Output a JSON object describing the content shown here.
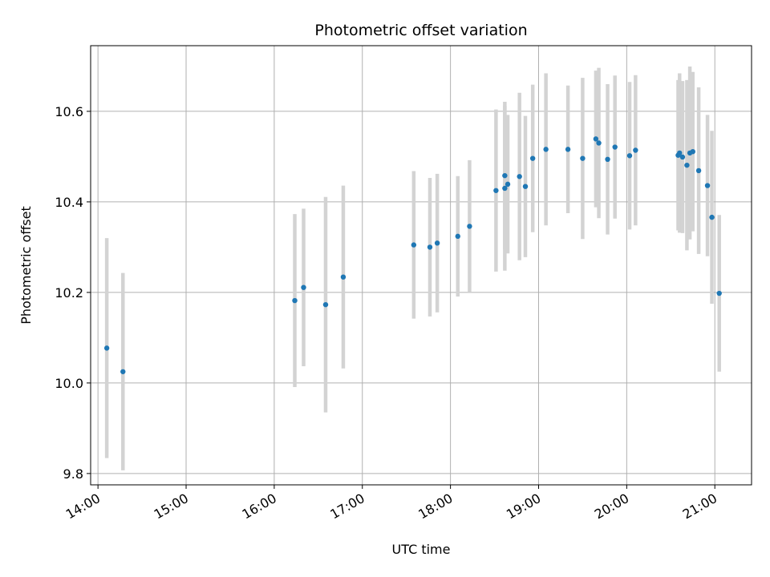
{
  "chart_data": {
    "type": "scatter",
    "title": "Photometric offset variation",
    "xlabel": "UTC time",
    "ylabel": "Photometric offset",
    "xlim": [
      "13:55",
      "21:25"
    ],
    "ylim": [
      9.775,
      10.745
    ],
    "x_ticks": [
      "14:00",
      "15:00",
      "16:00",
      "17:00",
      "18:00",
      "19:00",
      "20:00",
      "21:00"
    ],
    "y_ticks": [
      9.8,
      10.0,
      10.2,
      10.4,
      10.6
    ],
    "y_tick_labels": [
      "9.8",
      "10.0",
      "10.2",
      "10.4",
      "10.6"
    ],
    "grid": true,
    "series": [
      {
        "marker_color": "#1f77b4",
        "errorbar_color": "#d3d3d3",
        "points": [
          {
            "x": "14:06",
            "y": 10.077,
            "err": 0.243
          },
          {
            "x": "14:17",
            "y": 10.025,
            "err": 0.218
          },
          {
            "x": "16:14",
            "y": 10.182,
            "err": 0.191
          },
          {
            "x": "16:20",
            "y": 10.211,
            "err": 0.174
          },
          {
            "x": "16:35",
            "y": 10.173,
            "err": 0.238
          },
          {
            "x": "16:47",
            "y": 10.234,
            "err": 0.202
          },
          {
            "x": "17:35",
            "y": 10.305,
            "err": 0.163
          },
          {
            "x": "17:46",
            "y": 10.3,
            "err": 0.153
          },
          {
            "x": "17:51",
            "y": 10.309,
            "err": 0.153
          },
          {
            "x": "18:05",
            "y": 10.324,
            "err": 0.133
          },
          {
            "x": "18:13",
            "y": 10.346,
            "err": 0.146
          },
          {
            "x": "18:31",
            "y": 10.425,
            "err": 0.179
          },
          {
            "x": "18:37",
            "y": 10.458,
            "err": 0.163
          },
          {
            "x": "18:37",
            "y": 10.43,
            "err": 0.182
          },
          {
            "x": "18:39",
            "y": 10.439,
            "err": 0.153
          },
          {
            "x": "18:47",
            "y": 10.456,
            "err": 0.185
          },
          {
            "x": "18:51",
            "y": 10.434,
            "err": 0.156
          },
          {
            "x": "18:56",
            "y": 10.496,
            "err": 0.163
          },
          {
            "x": "19:05",
            "y": 10.516,
            "err": 0.168
          },
          {
            "x": "19:20",
            "y": 10.516,
            "err": 0.141
          },
          {
            "x": "19:30",
            "y": 10.496,
            "err": 0.178
          },
          {
            "x": "19:39",
            "y": 10.539,
            "err": 0.151
          },
          {
            "x": "19:41",
            "y": 10.53,
            "err": 0.166
          },
          {
            "x": "19:47",
            "y": 10.494,
            "err": 0.166
          },
          {
            "x": "19:52",
            "y": 10.521,
            "err": 0.158
          },
          {
            "x": "20:02",
            "y": 10.502,
            "err": 0.163
          },
          {
            "x": "20:06",
            "y": 10.514,
            "err": 0.166
          },
          {
            "x": "20:35",
            "y": 10.503,
            "err": 0.166
          },
          {
            "x": "20:36",
            "y": 10.508,
            "err": 0.176
          },
          {
            "x": "20:38",
            "y": 10.499,
            "err": 0.168
          },
          {
            "x": "20:41",
            "y": 10.481,
            "err": 0.188
          },
          {
            "x": "20:43",
            "y": 10.508,
            "err": 0.191
          },
          {
            "x": "20:45",
            "y": 10.511,
            "err": 0.176
          },
          {
            "x": "20:49",
            "y": 10.469,
            "err": 0.184
          },
          {
            "x": "20:55",
            "y": 10.436,
            "err": 0.156
          },
          {
            "x": "20:58",
            "y": 10.366,
            "err": 0.191
          },
          {
            "x": "21:03",
            "y": 10.198,
            "err": 0.173
          }
        ]
      }
    ]
  }
}
